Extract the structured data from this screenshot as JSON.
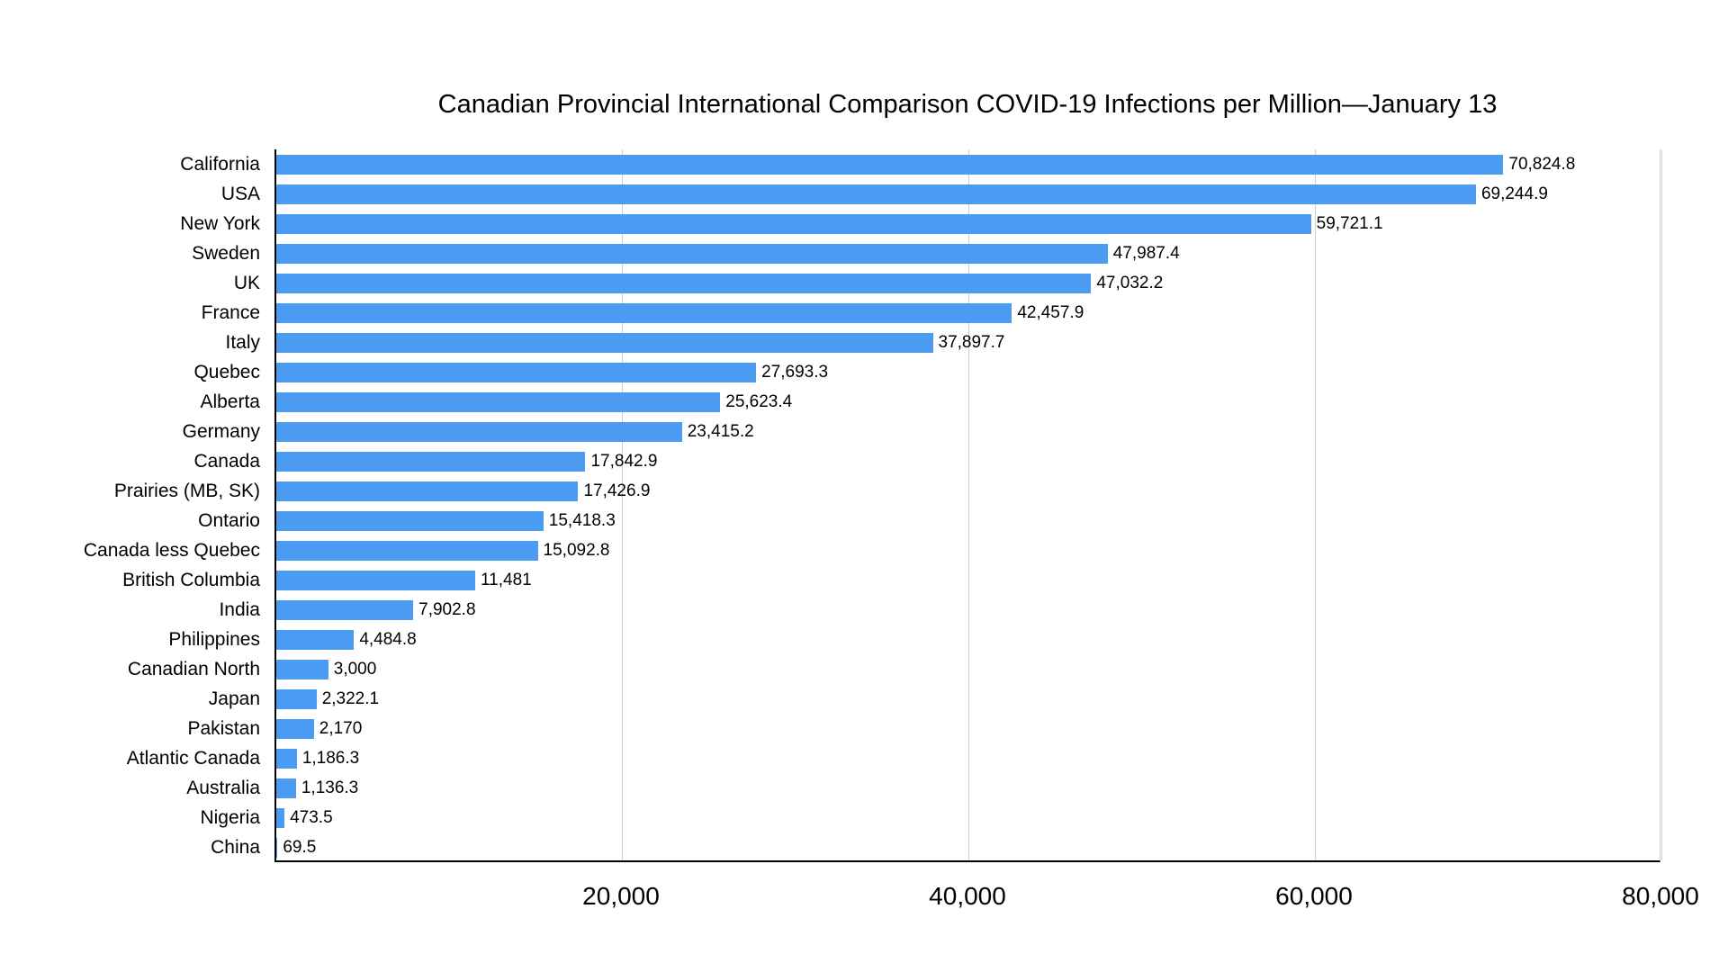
{
  "title": "Canadian Provincial International Comparison COVID-19 Infections per Million—January 13",
  "colors": {
    "bar": "#4B9BF2",
    "gridline": "#CFCFCF",
    "axis": "#000000",
    "background": "#FFFFFF",
    "text": "#000000"
  },
  "chart_data": {
    "type": "bar",
    "orientation": "horizontal",
    "title": "Canadian Provincial International Comparison COVID-19 Infections per Million—January 13",
    "xlabel": "",
    "ylabel": "",
    "xlim": [
      0,
      80000
    ],
    "grid": "vertical",
    "legend": "none",
    "categories": [
      "California",
      "USA",
      "New York",
      "Sweden",
      "UK",
      "France",
      "Italy",
      "Quebec",
      "Alberta",
      "Germany",
      "Canada",
      "Prairies (MB, SK)",
      "Ontario",
      "Canada less Quebec",
      "British Columbia",
      "India",
      "Philippines",
      "Canadian North",
      "Japan",
      "Pakistan",
      "Atlantic Canada",
      "Australia",
      "Nigeria",
      "China"
    ],
    "values": [
      70824.8,
      69244.9,
      59721.1,
      47987.4,
      47032.2,
      42457.9,
      37897.7,
      27693.3,
      25623.4,
      23415.2,
      17842.9,
      17426.9,
      15418.3,
      15092.8,
      11481,
      7902.8,
      4484.8,
      3000,
      2322.1,
      2170,
      1186.3,
      1136.3,
      473.5,
      69.5
    ],
    "value_labels": [
      "70,824.8",
      "69,244.9",
      "59,721.1",
      "47,987.4",
      "47,032.2",
      "42,457.9",
      "37,897.7",
      "27,693.3",
      "25,623.4",
      "23,415.2",
      "17,842.9",
      "17,426.9",
      "15,418.3",
      "15,092.8",
      "11,481",
      "7,902.8",
      "4,484.8",
      "3,000",
      "2,322.1",
      "2,170",
      "1,186.3",
      "1,136.3",
      "473.5",
      "69.5"
    ],
    "x_ticks": [
      {
        "value": 20000,
        "label": "20,000"
      },
      {
        "value": 40000,
        "label": "40,000"
      },
      {
        "value": 60000,
        "label": "60,000"
      },
      {
        "value": 80000,
        "label": "80,000"
      }
    ]
  }
}
